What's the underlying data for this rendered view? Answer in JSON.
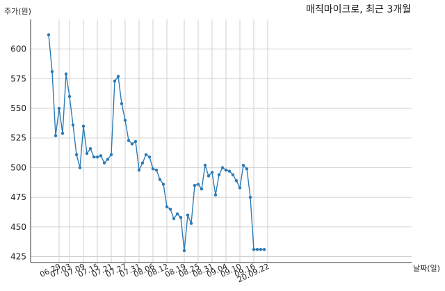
{
  "chart_data": {
    "type": "line",
    "title": "매직마이크로, 최근 3개월",
    "ylabel": "주가(원)",
    "xlabel": "날짜(일)",
    "ylim": [
      420,
      625
    ],
    "yticks": [
      425,
      450,
      475,
      500,
      525,
      550,
      575,
      600
    ],
    "grid": true,
    "x_tick_labels": [
      "06.29",
      "07.03",
      "07.09",
      "07.15",
      "07.21",
      "07.27",
      "07.31",
      "08.06",
      "08.12",
      "08.19",
      "08.25",
      "08.31",
      "09.04",
      "09.10",
      "09.16",
      "20.09.22"
    ],
    "x_tick_index": [
      3,
      6,
      10,
      14,
      18,
      22,
      26,
      30,
      34,
      39,
      43,
      47,
      51,
      55,
      59,
      63
    ],
    "series": [
      {
        "values": [
          612,
          581,
          527,
          550,
          529,
          579,
          560,
          536,
          511,
          500,
          535,
          512,
          516,
          509,
          509,
          510,
          504,
          507,
          511,
          573,
          577,
          554,
          540,
          523,
          520,
          522,
          498,
          504,
          511,
          509,
          499,
          498,
          490,
          486,
          467,
          465,
          457,
          461,
          458,
          430,
          460,
          453,
          485,
          486,
          482,
          502,
          493,
          496,
          477,
          494,
          500,
          498,
          497,
          494,
          489,
          483,
          502,
          499,
          475,
          431,
          431,
          431,
          431
        ]
      }
    ]
  }
}
